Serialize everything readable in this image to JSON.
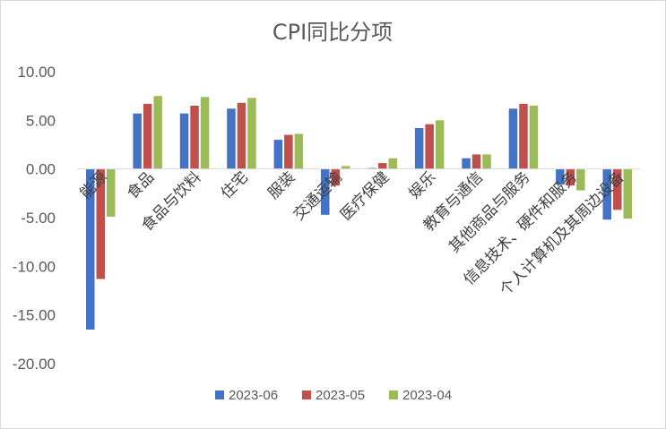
{
  "chart_data": {
    "type": "bar",
    "title": "CPI同比分项",
    "ylim": [
      -20,
      10
    ],
    "yticks": [
      "10.00",
      "5.00",
      "0.00",
      "-5.00",
      "-10.00",
      "-15.00",
      "-20.00"
    ],
    "ytick_values": [
      10,
      5,
      0,
      -5,
      -10,
      -15,
      -20
    ],
    "grid": false,
    "legend_position": "bottom",
    "categories": [
      "能源",
      "食品",
      "食品与饮料",
      "住宅",
      "服装",
      "交通运输",
      "医疗保健",
      "娱乐",
      "教育与通信",
      "其他商品与服务",
      "信息技术、硬件和服务",
      "个人计算机及其周边设备"
    ],
    "series": [
      {
        "name": "2023-06",
        "color": "#4472c4",
        "values": [
          -16.5,
          5.7,
          5.7,
          6.2,
          3.0,
          -4.7,
          0.1,
          4.2,
          1.1,
          6.2,
          -1.6,
          -5.2
        ]
      },
      {
        "name": "2023-05",
        "color": "#c0504d",
        "values": [
          -11.3,
          6.7,
          6.5,
          6.8,
          3.5,
          -1.7,
          0.6,
          4.6,
          1.5,
          6.7,
          -1.7,
          -4.2
        ]
      },
      {
        "name": "2023-04",
        "color": "#9bbb59",
        "values": [
          -4.9,
          7.5,
          7.4,
          7.3,
          3.6,
          0.3,
          1.1,
          5.0,
          1.5,
          6.5,
          -2.2,
          -5.1
        ]
      }
    ]
  }
}
